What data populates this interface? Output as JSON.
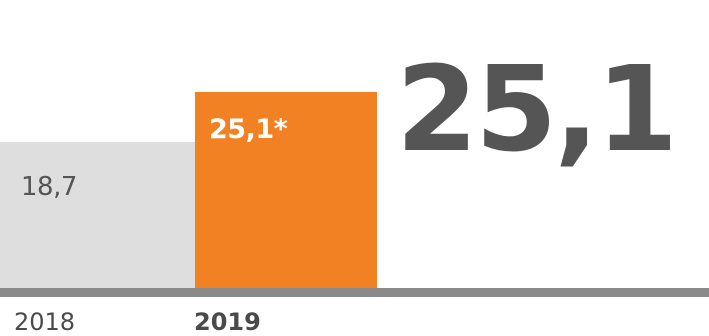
{
  "chart_data": {
    "type": "bar",
    "categories": [
      "2018",
      "2019"
    ],
    "values": [
      18.7,
      25.1
    ],
    "value_labels": [
      "18,7",
      "25,1*"
    ],
    "highlight_category": "2019",
    "headline_value": "25,1",
    "colors": {
      "bar_2018": "#dedede",
      "bar_2019": "#f28123",
      "label_2018": "#555555",
      "label_2019": "#ffffff",
      "headline": "#555555",
      "baseline": "#8a8a8a"
    },
    "title": "",
    "xlabel": "",
    "ylabel": "",
    "ylim": [
      0,
      25.1
    ],
    "grid": false
  }
}
